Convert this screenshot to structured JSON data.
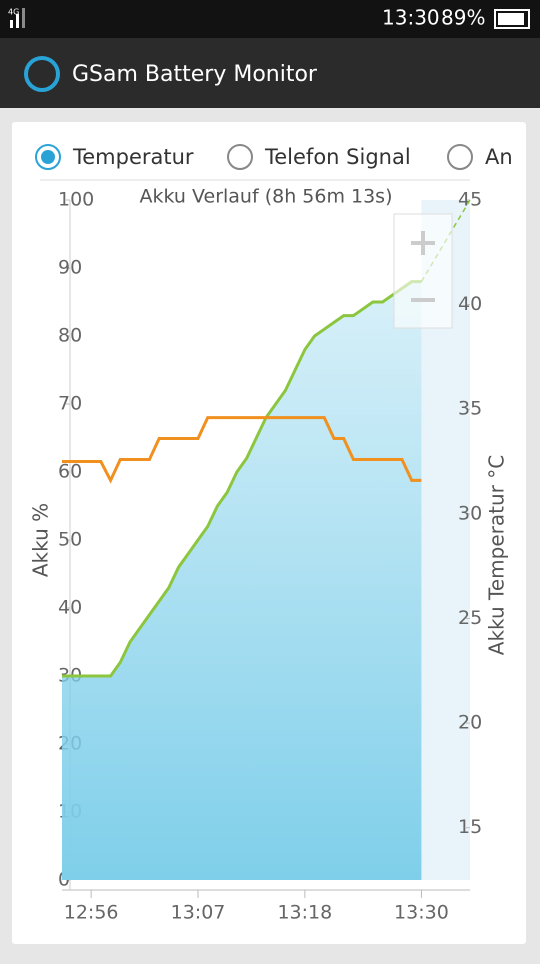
{
  "status_bar": {
    "network": "4G",
    "time": "13:30",
    "battery": "89%"
  },
  "app_bar": {
    "title": "GSam Battery Monitor"
  },
  "tabs": [
    {
      "label": "Temperatur",
      "selected": true
    },
    {
      "label": "Telefon Signal",
      "selected": false
    },
    {
      "label": "An",
      "selected": false
    }
  ],
  "chart_data": {
    "type": "line",
    "title": "Akku Verlauf (8h 56m 13s)",
    "y_label": "Akku %",
    "y2_label": "Akku Temperatur °C",
    "x": [
      "12:53",
      "12:54",
      "12:55",
      "12:56",
      "12:57",
      "12:58",
      "12:59",
      "13:00",
      "13:01",
      "13:02",
      "13:03",
      "13:04",
      "13:05",
      "13:06",
      "13:07",
      "13:08",
      "13:09",
      "13:10",
      "13:11",
      "13:12",
      "13:13",
      "13:14",
      "13:15",
      "13:16",
      "13:17",
      "13:18",
      "13:19",
      "13:20",
      "13:21",
      "13:22",
      "13:23",
      "13:24",
      "13:25",
      "13:26",
      "13:27",
      "13:28",
      "13:29",
      "13:30",
      "13:31",
      "13:32",
      "13:33",
      "13:34",
      "13:35"
    ],
    "series": [
      {
        "color": "#8cc63f",
        "area_color": "#7fcfea",
        "fill": true,
        "values": [
          30,
          30,
          30,
          30,
          30,
          30,
          32,
          35,
          37,
          39,
          41,
          43,
          46,
          48,
          50,
          52,
          55,
          57,
          60,
          62,
          65,
          68,
          70,
          72,
          75,
          78,
          80,
          81,
          82,
          83,
          83,
          84,
          85,
          85,
          86,
          87,
          88,
          88,
          null,
          null,
          null,
          null,
          null
        ]
      },
      {
        "color": "#8cc63f",
        "dashed": true,
        "values": [
          null,
          null,
          null,
          null,
          null,
          null,
          null,
          null,
          null,
          null,
          null,
          null,
          null,
          null,
          null,
          null,
          null,
          null,
          null,
          null,
          null,
          null,
          null,
          null,
          null,
          null,
          null,
          null,
          null,
          null,
          null,
          null,
          null,
          null,
          null,
          null,
          null,
          88,
          90.4,
          92.8,
          95.2,
          97.6,
          100
        ]
      },
      {
        "color": "#f0901e",
        "axis": "y2",
        "values": [
          32.5,
          32.5,
          32.5,
          32.5,
          32.5,
          31.6,
          32.6,
          32.6,
          32.6,
          32.6,
          33.6,
          33.6,
          33.6,
          33.6,
          33.6,
          34.6,
          34.6,
          34.6,
          34.6,
          34.6,
          34.6,
          34.6,
          34.6,
          34.6,
          34.6,
          34.6,
          34.6,
          34.6,
          33.6,
          33.6,
          32.6,
          32.6,
          32.6,
          32.6,
          32.6,
          32.6,
          31.6,
          31.6,
          null,
          null,
          null,
          null,
          null
        ]
      }
    ],
    "xlim": [
      "12:53",
      "13:35"
    ],
    "xticks": [
      "12:56",
      "13:07",
      "13:18",
      "13:30"
    ],
    "ylim": [
      0,
      100
    ],
    "yticks": [
      0,
      10,
      20,
      30,
      40,
      50,
      60,
      70,
      80,
      90,
      100
    ],
    "y2lim": [
      12.5,
      45
    ],
    "y2ticks": [
      15,
      20,
      25,
      30,
      35,
      40,
      45
    ]
  }
}
